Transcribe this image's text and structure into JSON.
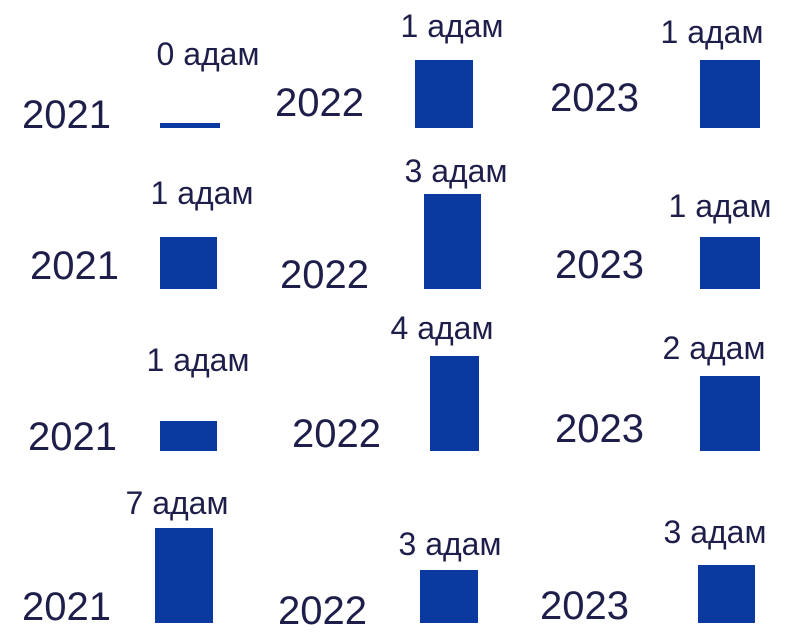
{
  "chart_data": {
    "type": "bar",
    "value_unit": "адам",
    "series_color": "#0a3aa0",
    "text_color": "#1e1e4a",
    "rows": [
      {
        "categories": [
          "2021",
          "2022",
          "2023"
        ],
        "values": [
          0,
          1,
          1
        ],
        "labels": [
          "0 адам",
          "1 адам",
          "1 адам"
        ]
      },
      {
        "categories": [
          "2021",
          "2022",
          "2023"
        ],
        "values": [
          1,
          3,
          1
        ],
        "labels": [
          "1 адам",
          "3 адам",
          "1 адам"
        ]
      },
      {
        "categories": [
          "2021",
          "2022",
          "2023"
        ],
        "values": [
          1,
          4,
          2
        ],
        "labels": [
          "1 адам",
          "4 адам",
          "2 адам"
        ]
      },
      {
        "categories": [
          "2021",
          "2022",
          "2023"
        ],
        "values": [
          7,
          3,
          3
        ],
        "labels": [
          "7 адам",
          "3 адам",
          "3 адам"
        ]
      }
    ]
  }
}
